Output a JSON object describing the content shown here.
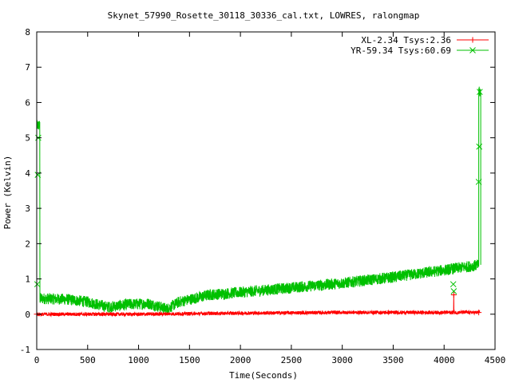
{
  "chart_data": {
    "type": "line",
    "title": "Skynet_57990_Rosette_30118_30336_cal.txt, LOWRES, ralongmap",
    "xlabel": "Time(Seconds)",
    "ylabel": "Power (Kelvin)",
    "xlim": [
      0,
      4500
    ],
    "ylim": [
      -1,
      8
    ],
    "xticks": [
      "0",
      "500",
      "1000",
      "1500",
      "2000",
      "2500",
      "3000",
      "3500",
      "4000",
      "4500"
    ],
    "yticks": [
      "-1",
      "0",
      "1",
      "2",
      "3",
      "4",
      "5",
      "6",
      "7",
      "8"
    ],
    "grid": false,
    "legend_position": "top-right",
    "series": [
      {
        "name": "XL-2.34 Tsys:2.36",
        "color": "#ff0000",
        "marker": "plus",
        "baseline": [
          [
            0,
            0.0
          ],
          [
            1000,
            0.0
          ],
          [
            2000,
            0.03
          ],
          [
            3000,
            0.05
          ],
          [
            4000,
            0.05
          ],
          [
            4350,
            0.05
          ]
        ],
        "noise": 0.05,
        "spikes": [
          [
            4095,
            0.55
          ]
        ],
        "markers": [
          [
            0,
            0.0
          ],
          [
            4095,
            0.55
          ],
          [
            4340,
            0.05
          ]
        ]
      },
      {
        "name": "YR-59.34 Tsys:60.69",
        "color": "#00c000",
        "marker": "cross",
        "baseline": [
          [
            0,
            0.45
          ],
          [
            300,
            0.42
          ],
          [
            500,
            0.35
          ],
          [
            700,
            0.2
          ],
          [
            900,
            0.28
          ],
          [
            1100,
            0.3
          ],
          [
            1280,
            0.15
          ],
          [
            1400,
            0.35
          ],
          [
            1700,
            0.55
          ],
          [
            2000,
            0.62
          ],
          [
            2500,
            0.75
          ],
          [
            3000,
            0.88
          ],
          [
            3500,
            1.05
          ],
          [
            4000,
            1.25
          ],
          [
            4350,
            1.4
          ]
        ],
        "noise": 0.16,
        "cal_start": [
          0,
          30,
          5.35
        ],
        "cal_end": [
          4340,
          4360,
          6.3
        ],
        "markers": [
          [
            5,
            0.85
          ],
          [
            10,
            3.95
          ],
          [
            15,
            5.0
          ],
          [
            4090,
            0.85
          ],
          [
            4095,
            0.65
          ],
          [
            4340,
            3.75
          ],
          [
            4345,
            4.75
          ],
          [
            4350,
            6.3
          ]
        ]
      }
    ]
  }
}
